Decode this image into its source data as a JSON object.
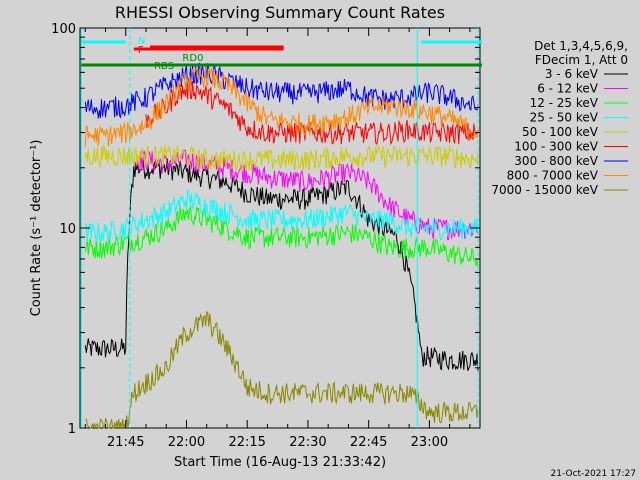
{
  "chart_data": {
    "type": "line",
    "title": "RHESSI Observing Summary Count Rates",
    "xlabel": "Start Time (16-Aug-13 21:33:42)",
    "ylabel": "Count Rate (s⁻¹ detector⁻¹)",
    "yscale": "log",
    "ylim": [
      1,
      100
    ],
    "xlim_minutes": [
      33.7,
      132.5
    ],
    "x_tick_labels": [
      "21:45",
      "22:00",
      "22:15",
      "22:30",
      "22:45",
      "23:00"
    ],
    "x_tick_minutes": [
      45,
      60,
      75,
      90,
      105,
      120
    ],
    "y_tick_labels": [
      "1",
      "10",
      "100"
    ],
    "legend_header": [
      "Det 1,3,4,5,6,9,",
      "FDecim 1, Att 0"
    ],
    "legend_position": "right",
    "annotations": {
      "night_label": "N",
      "flare_label": "F",
      "rd_label": "RD0",
      "saa_label": "RBS"
    },
    "series": [
      {
        "name": "3 - 6 keV",
        "color": "#000000",
        "x": [
          35,
          45,
          47,
          55,
          60,
          65,
          70,
          75,
          80,
          90,
          100,
          105,
          112,
          118,
          125,
          132
        ],
        "y": [
          2.5,
          2.5,
          20,
          20,
          19,
          18,
          17,
          15,
          14,
          14,
          16,
          11,
          9,
          2.3,
          2.2,
          2.2
        ]
      },
      {
        "name": "6 - 12 keV",
        "color": "#ff00ff",
        "x": [
          47,
          50,
          55,
          60,
          65,
          70,
          75,
          80,
          90,
          100,
          105,
          110,
          115,
          120,
          125,
          132
        ],
        "y": [
          22,
          22,
          21,
          22,
          21,
          20,
          19,
          18,
          17,
          19,
          17,
          13,
          11,
          10,
          10,
          10
        ]
      },
      {
        "name": "12 - 25 keV",
        "color": "#00ff00",
        "x": [
          35,
          40,
          45,
          50,
          55,
          60,
          65,
          70,
          75,
          80,
          90,
          100,
          105,
          110,
          115,
          120,
          125,
          132
        ],
        "y": [
          8,
          8,
          8.5,
          9,
          10,
          12,
          11,
          10,
          9,
          9,
          9,
          9.5,
          9,
          8,
          8,
          8,
          7.5,
          7
        ]
      },
      {
        "name": "25 - 50 keV",
        "color": "#00ffff",
        "x": [
          35,
          40,
          45,
          50,
          55,
          60,
          65,
          70,
          75,
          80,
          90,
          100,
          105,
          110,
          115,
          120,
          125,
          132
        ],
        "y": [
          9.5,
          9.5,
          10,
          11,
          12,
          14,
          13,
          12,
          11,
          11,
          11,
          12,
          11,
          11,
          10,
          10,
          10,
          10
        ]
      },
      {
        "name": "50 - 100 keV",
        "color": "#cccc00",
        "x": [
          35,
          40,
          45,
          50,
          55,
          60,
          65,
          70,
          75,
          80,
          90,
          100,
          105,
          110,
          115,
          120,
          125,
          132
        ],
        "y": [
          23,
          23,
          23,
          23,
          23,
          23,
          22,
          22,
          22,
          22,
          22,
          23,
          23,
          23,
          23,
          23,
          23,
          22
        ]
      },
      {
        "name": "100 - 300 keV",
        "color": "#ff0000",
        "x": [
          50,
          55,
          58,
          62,
          66,
          70,
          75,
          80,
          90,
          100,
          105,
          110,
          115,
          120,
          125,
          132
        ],
        "y": [
          35,
          40,
          48,
          50,
          45,
          40,
          32,
          30,
          30,
          30,
          30,
          30,
          31,
          30,
          30,
          30
        ]
      },
      {
        "name": "300 - 800 keV",
        "color": "#0000ff",
        "x": [
          35,
          40,
          45,
          50,
          55,
          60,
          65,
          70,
          75,
          80,
          90,
          100,
          105,
          110,
          115,
          120,
          125,
          132
        ],
        "y": [
          40,
          40,
          41,
          45,
          52,
          58,
          60,
          55,
          50,
          48,
          47,
          50,
          45,
          44,
          45,
          48,
          45,
          40
        ]
      },
      {
        "name": "800 - 7000 keV",
        "color": "#ff8800",
        "x": [
          35,
          40,
          45,
          50,
          55,
          60,
          65,
          70,
          75,
          80,
          90,
          100,
          105,
          110,
          115,
          120,
          125,
          132
        ],
        "y": [
          29,
          29,
          30,
          33,
          42,
          55,
          58,
          52,
          42,
          35,
          33,
          36,
          40,
          41,
          40,
          38,
          35,
          30
        ]
      },
      {
        "name": "7000 - 15000 keV",
        "color": "#888800",
        "x": [
          35,
          45,
          47,
          55,
          60,
          65,
          70,
          75,
          80,
          90,
          100,
          105,
          110,
          115,
          120,
          132
        ],
        "y": [
          1,
          1,
          1.5,
          2,
          3,
          3.5,
          2.5,
          1.6,
          1.5,
          1.5,
          1.5,
          1.5,
          1.5,
          1.5,
          1.2,
          1.2
        ]
      }
    ],
    "flags": {
      "night_top": [
        [
          34,
          45
        ],
        [
          118,
          133
        ]
      ],
      "saa_line": [
        [
          34,
          133
        ]
      ],
      "flare_line": [
        [
          51,
          84
        ]
      ],
      "rd_line": [
        [
          47,
          84
        ]
      ]
    },
    "vertical_markers": [
      34,
      46,
      117,
      132
    ]
  },
  "footer": {
    "date_stamp": "21-Oct-2021 17:27"
  }
}
